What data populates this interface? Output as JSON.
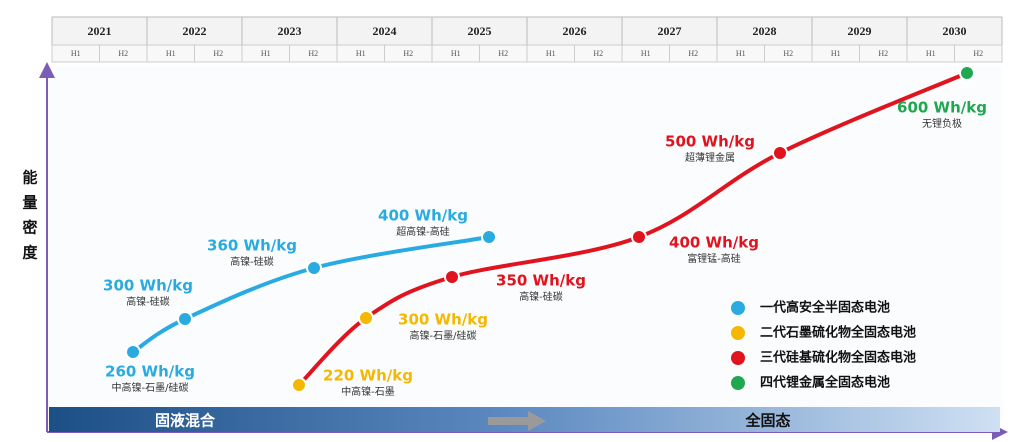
{
  "timeline": {
    "years": [
      "2021",
      "2022",
      "2023",
      "2024",
      "2025",
      "2026",
      "2027",
      "2028",
      "2029",
      "2030"
    ],
    "halves": [
      "H1",
      "H2"
    ]
  },
  "y_axis_label": [
    "能",
    "量",
    "密",
    "度"
  ],
  "phases": [
    "固液混合",
    "全固态"
  ],
  "series": [
    {
      "name": "一代高安全半固态电池",
      "color": "#29abe2",
      "points": [
        {
          "value": "260 Wh/kg",
          "note": "中高镍-石墨/硅碳"
        },
        {
          "value": "300 Wh/kg",
          "note": "高镍-硅碳"
        },
        {
          "value": "360 Wh/kg",
          "note": "高镍-硅碳"
        },
        {
          "value": "400 Wh/kg",
          "note": "超高镍-高硅"
        }
      ]
    },
    {
      "name": "二代石墨硫化物全固态电池",
      "color": "#f5b800",
      "points": [
        {
          "value": "220 Wh/kg",
          "note": "中高镍-石墨"
        },
        {
          "value": "300 Wh/kg",
          "note": "高镍-石墨/硅碳"
        }
      ]
    },
    {
      "name": "三代硅基硫化物全固态电池",
      "color": "#e0141e",
      "points": [
        {
          "value": "350 Wh/kg",
          "note": "高镍-硅碳"
        },
        {
          "value": "400 Wh/kg",
          "note": "富锂锰-高硅"
        },
        {
          "value": "500 Wh/kg",
          "note": "超薄锂金属"
        }
      ]
    },
    {
      "name": "四代锂金属全固态电池",
      "color": "#1fa84f",
      "points": [
        {
          "value": "600 Wh/kg",
          "note": "无锂负极"
        }
      ]
    }
  ]
}
